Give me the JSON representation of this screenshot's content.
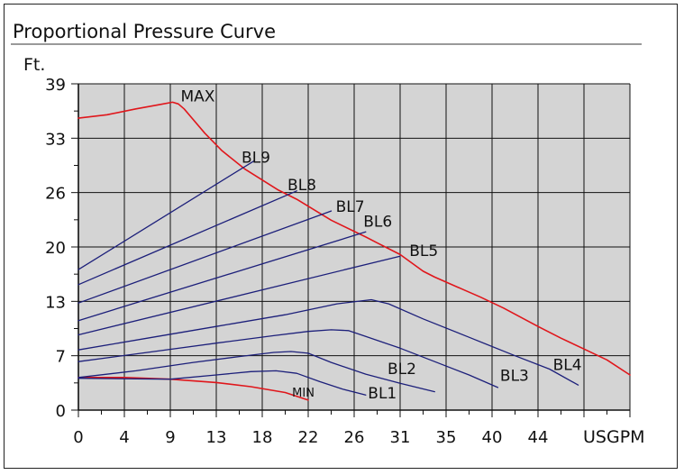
{
  "chart_data": {
    "type": "line",
    "title": "Proportional Pressure Curve",
    "ylabel": "Ft.",
    "xlabel": "USGPM",
    "x_ticks": [
      "0",
      "4",
      "9",
      "13",
      "18",
      "22",
      "26",
      "31",
      "35",
      "40",
      "44"
    ],
    "y_ticks": [
      "0",
      "7",
      "13",
      "20",
      "26",
      "33",
      "39"
    ],
    "xlim": [
      0,
      48
    ],
    "ylim": [
      0,
      39
    ],
    "grid": true,
    "colors": {
      "max_curve": "#e0161b",
      "min_curve": "#e0161b",
      "bl_lines": "#1c1f7a",
      "plot_bg": "#d4d4d4",
      "grid": "#111111"
    },
    "series": [
      {
        "name": "MAX",
        "color": "#e0161b",
        "points": [
          [
            0,
            34.9
          ],
          [
            2.5,
            35.3
          ],
          [
            5,
            36.0
          ],
          [
            7,
            36.5
          ],
          [
            8.2,
            36.8
          ],
          [
            8.7,
            36.6
          ],
          [
            9.2,
            36.0
          ],
          [
            11,
            33.1
          ],
          [
            12.5,
            31.0
          ],
          [
            14.5,
            28.8
          ],
          [
            17.4,
            26.3
          ],
          [
            19,
            25.2
          ],
          [
            22,
            22.7
          ],
          [
            25,
            20.7
          ],
          [
            26,
            20.0
          ],
          [
            28,
            18.6
          ],
          [
            30,
            16.6
          ],
          [
            31,
            15.9
          ],
          [
            33.5,
            14.4
          ],
          [
            35,
            13.5
          ],
          [
            37,
            12.2
          ],
          [
            40,
            10.0
          ],
          [
            42,
            8.6
          ],
          [
            44,
            7.3
          ],
          [
            46,
            6.0
          ],
          [
            48,
            4.2
          ]
        ]
      },
      {
        "name": "MIN",
        "color": "#e0161b",
        "points": [
          [
            0,
            3.9
          ],
          [
            4,
            3.9
          ],
          [
            8,
            3.7
          ],
          [
            12,
            3.3
          ],
          [
            15,
            2.8
          ],
          [
            18,
            2.1
          ],
          [
            20,
            1.2
          ]
        ]
      },
      {
        "name": "BL1",
        "color": "#1c1f7a",
        "points": [
          [
            0,
            3.8
          ],
          [
            8,
            3.7
          ],
          [
            12,
            4.2
          ],
          [
            15,
            4.6
          ],
          [
            17.2,
            4.7
          ],
          [
            19,
            4.4
          ],
          [
            21,
            3.4
          ],
          [
            23,
            2.5
          ],
          [
            25,
            1.8
          ]
        ]
      },
      {
        "name": "BL2",
        "color": "#1c1f7a",
        "points": [
          [
            0,
            3.9
          ],
          [
            5,
            4.7
          ],
          [
            10,
            5.7
          ],
          [
            14,
            6.4
          ],
          [
            17,
            6.9
          ],
          [
            18.5,
            7.0
          ],
          [
            20,
            6.8
          ],
          [
            22,
            5.7
          ],
          [
            25,
            4.3
          ],
          [
            28,
            3.2
          ],
          [
            31,
            2.2
          ]
        ]
      },
      {
        "name": "BL3",
        "color": "#1c1f7a",
        "points": [
          [
            0,
            5.8
          ],
          [
            6,
            6.9
          ],
          [
            12,
            8.0
          ],
          [
            17,
            8.9
          ],
          [
            20,
            9.4
          ],
          [
            22,
            9.6
          ],
          [
            23.5,
            9.5
          ],
          [
            25,
            8.8
          ],
          [
            28,
            7.4
          ],
          [
            31,
            5.8
          ],
          [
            34,
            4.2
          ],
          [
            36.5,
            2.7
          ]
        ]
      },
      {
        "name": "BL4",
        "color": "#1c1f7a",
        "points": [
          [
            0,
            7.2
          ],
          [
            6,
            8.6
          ],
          [
            12,
            10.0
          ],
          [
            18,
            11.4
          ],
          [
            22.5,
            12.7
          ],
          [
            25.5,
            13.2
          ],
          [
            27,
            12.7
          ],
          [
            30,
            10.9
          ],
          [
            34,
            8.7
          ],
          [
            38,
            6.5
          ],
          [
            41,
            4.9
          ],
          [
            43.5,
            3.0
          ]
        ]
      },
      {
        "name": "BL5",
        "color": "#1c1f7a",
        "points": [
          [
            0,
            9.0
          ],
          [
            28,
            18.4
          ]
        ]
      },
      {
        "name": "BL6",
        "color": "#1c1f7a",
        "points": [
          [
            0,
            10.7
          ],
          [
            25,
            21.3
          ]
        ]
      },
      {
        "name": "BL7",
        "color": "#1c1f7a",
        "points": [
          [
            0,
            12.8
          ],
          [
            22,
            23.8
          ]
        ]
      },
      {
        "name": "BL8",
        "color": "#1c1f7a",
        "points": [
          [
            0,
            15.0
          ],
          [
            19,
            26.2
          ]
        ]
      },
      {
        "name": "BL9",
        "color": "#1c1f7a",
        "points": [
          [
            0,
            16.8
          ],
          [
            15.3,
            29.8
          ]
        ]
      }
    ],
    "annotations": [
      {
        "text": "MAX",
        "x": 8.9,
        "y": 36.9,
        "size": "normal"
      },
      {
        "text": "BL9",
        "x": 14.2,
        "y": 29.6,
        "size": "normal"
      },
      {
        "text": "BL8",
        "x": 18.2,
        "y": 26.3,
        "size": "normal"
      },
      {
        "text": "BL7",
        "x": 22.4,
        "y": 23.7,
        "size": "normal"
      },
      {
        "text": "BL6",
        "x": 24.8,
        "y": 21.9,
        "size": "normal"
      },
      {
        "text": "BL5",
        "x": 28.8,
        "y": 18.4,
        "size": "normal"
      },
      {
        "text": "BL4",
        "x": 41.3,
        "y": 4.8,
        "size": "normal"
      },
      {
        "text": "BL3",
        "x": 36.7,
        "y": 3.5,
        "size": "normal"
      },
      {
        "text": "BL2",
        "x": 26.9,
        "y": 4.3,
        "size": "normal"
      },
      {
        "text": "BL1",
        "x": 25.2,
        "y": 1.4,
        "size": "normal"
      },
      {
        "text": "MIN",
        "x": 18.6,
        "y": 1.6,
        "size": "small"
      }
    ]
  }
}
